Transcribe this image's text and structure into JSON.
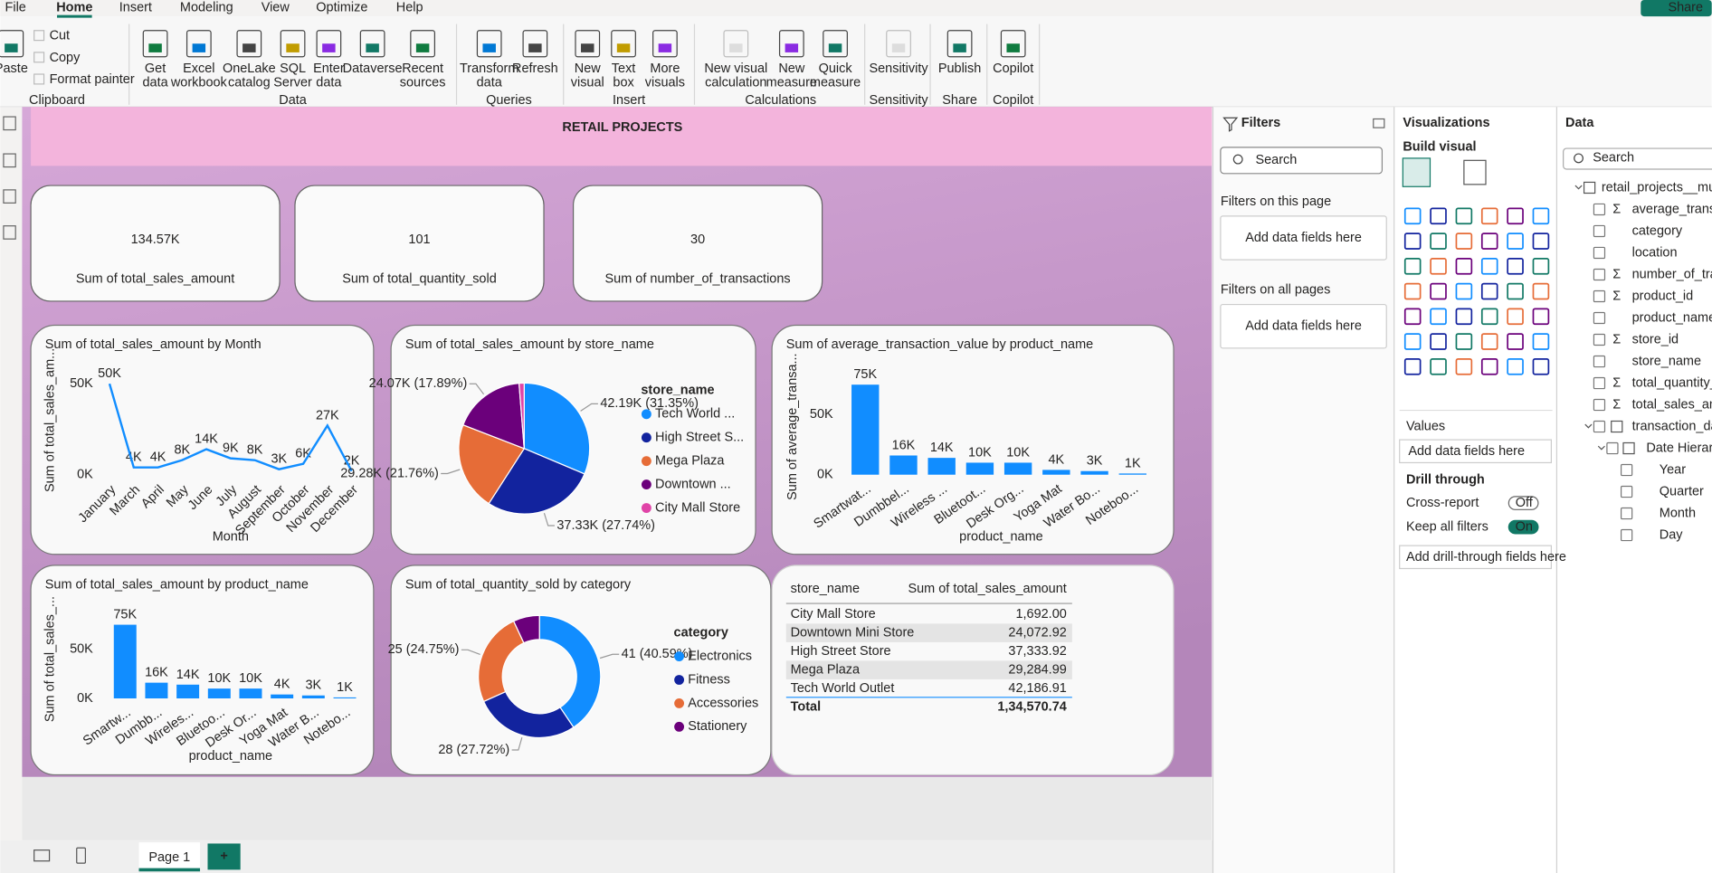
{
  "menu": {
    "tabs": [
      "File",
      "Home",
      "Insert",
      "Modeling",
      "View",
      "Optimize",
      "Help"
    ],
    "active": 1,
    "share": "Share"
  },
  "ribbon": {
    "groups": [
      {
        "label": "Clipboard",
        "buttons": [
          [
            "Paste"
          ]
        ],
        "small": [
          "Cut",
          "Copy",
          "Format painter"
        ]
      },
      {
        "label": "Data",
        "buttons": [
          [
            "Get",
            "data"
          ],
          [
            "Excel",
            "workbook"
          ],
          [
            "OneLake",
            "catalog"
          ],
          [
            "SQL",
            "Server"
          ],
          [
            "Enter",
            "data"
          ],
          [
            "Dataverse"
          ],
          [
            "Recent",
            "sources"
          ]
        ]
      },
      {
        "label": "Queries",
        "buttons": [
          [
            "Transform",
            "data"
          ],
          [
            "Refresh"
          ]
        ]
      },
      {
        "label": "Insert",
        "buttons": [
          [
            "New",
            "visual"
          ],
          [
            "Text",
            "box"
          ],
          [
            "More",
            "visuals"
          ]
        ]
      },
      {
        "label": "Calculations",
        "buttons": [
          [
            "New visual",
            "calculation"
          ],
          [
            "New",
            "measure"
          ],
          [
            "Quick",
            "measure"
          ]
        ]
      },
      {
        "label": "Sensitivity",
        "buttons": [
          [
            "Sensitivity"
          ]
        ]
      },
      {
        "label": "Share",
        "buttons": [
          [
            "Publish"
          ]
        ]
      },
      {
        "label": "Copilot",
        "buttons": [
          [
            "Copilot"
          ]
        ]
      }
    ]
  },
  "report": {
    "title": "RETAIL PROJECTS"
  },
  "cards": [
    {
      "value": "134.57K",
      "label": "Sum of total_sales_amount"
    },
    {
      "value": "101",
      "label": "Sum of total_quantity_sold"
    },
    {
      "value": "30",
      "label": "Sum of number_of_transactions"
    }
  ],
  "chart_data": [
    {
      "type": "line",
      "title": "Sum of total_sales_amount by Month",
      "x_label": "Month",
      "y_label": "Sum of total_sales_am...",
      "categories": [
        "January",
        "March",
        "April",
        "May",
        "June",
        "July",
        "August",
        "September",
        "October",
        "November",
        "December"
      ],
      "values": [
        50000,
        4000,
        4000,
        8000,
        14000,
        9000,
        8000,
        3000,
        6000,
        27000,
        2000
      ],
      "value_labels": [
        "50K",
        "4K",
        "4K",
        "8K",
        "14K",
        "9K",
        "8K",
        "3K",
        "6K",
        "27K",
        "2K"
      ],
      "color": "#118dff",
      "ylim": [
        0,
        60000
      ],
      "yticks": [
        {
          "value": 0,
          "label": "0K"
        },
        {
          "value": 50000,
          "label": "50K"
        }
      ],
      "grid": false
    },
    {
      "type": "pie",
      "title": "Sum of total_sales_amount by store_name",
      "legend_title": "store_name",
      "categories": [
        "Tech World ...",
        "High Street S...",
        "Mega Plaza",
        "Downtown ...",
        "City Mall Store"
      ],
      "values": [
        42186.91,
        37333.92,
        29284.99,
        24072.92,
        1692.0
      ],
      "value_labels": [
        "42.19K (31.35%)",
        "37.33K (27.74%)",
        "29.28K (21.76%)",
        "24.07K (17.89%)",
        null
      ],
      "colors": [
        "#118dff",
        "#12239e",
        "#e66c37",
        "#6b007b",
        "#e044a7"
      ]
    },
    {
      "type": "bar",
      "title": "Sum of average_transaction_value by product_name",
      "x_label": "product_name",
      "y_label": "Sum of average_transa...",
      "categories": [
        "Smartwat...",
        "Dumbbel...",
        "Wireless ...",
        "Bluetoot...",
        "Desk Org...",
        "Yoga Mat",
        "Water Bo...",
        "Noteboo..."
      ],
      "values": [
        75000,
        16000,
        14000,
        10000,
        10000,
        4000,
        3000,
        1000
      ],
      "value_labels": [
        "75K",
        "16K",
        "14K",
        "10K",
        "10K",
        "4K",
        "3K",
        "1K"
      ],
      "color": "#118dff",
      "ylim": [
        0,
        80000
      ],
      "yticks": [
        {
          "value": 0,
          "label": "0K"
        },
        {
          "value": 50000,
          "label": "50K"
        }
      ],
      "grid": false
    },
    {
      "type": "bar",
      "title": "Sum of total_sales_amount by product_name",
      "x_label": "product_name",
      "y_label": "Sum of total_sales_...",
      "categories": [
        "Smartw...",
        "Dumbb...",
        "Wireles...",
        "Bluetoo...",
        "Desk Or...",
        "Yoga Mat",
        "Water B...",
        "Notebo..."
      ],
      "values": [
        75000,
        16000,
        14000,
        10000,
        10000,
        4000,
        3000,
        1000
      ],
      "value_labels": [
        "75K",
        "16K",
        "14K",
        "10K",
        "10K",
        "4K",
        "3K",
        "1K"
      ],
      "color": "#118dff",
      "ylim": [
        0,
        80000
      ],
      "yticks": [
        {
          "value": 0,
          "label": "0K"
        },
        {
          "value": 50000,
          "label": "50K"
        }
      ],
      "grid": false
    },
    {
      "type": "donut",
      "title": "Sum of total_quantity_sold by category",
      "legend_title": "category",
      "categories": [
        "Electronics",
        "Fitness",
        "Accessories",
        "Stationery"
      ],
      "values": [
        41,
        28,
        25,
        7
      ],
      "value_labels": [
        "41 (40.59%)",
        "28 (27.72%)",
        "25 (24.75%)",
        null
      ],
      "colors": [
        "#118dff",
        "#12239e",
        "#e66c37",
        "#6b007b"
      ]
    }
  ],
  "table": {
    "columns": [
      "store_name",
      "Sum of total_sales_amount"
    ],
    "rows": [
      [
        "City Mall Store",
        "1,692.00"
      ],
      [
        "Downtown Mini Store",
        "24,072.92"
      ],
      [
        "High Street Store",
        "37,333.92"
      ],
      [
        "Mega Plaza",
        "29,284.99"
      ],
      [
        "Tech World Outlet",
        "42,186.91"
      ]
    ],
    "total": [
      "Total",
      "1,34,570.74"
    ]
  },
  "filters": {
    "title": "Filters",
    "search": "Search",
    "sections": [
      {
        "label": "Filters on this page",
        "placeholder": "Add data fields here"
      },
      {
        "label": "Filters on all pages",
        "placeholder": "Add data fields here"
      }
    ]
  },
  "visualizations": {
    "title": "Visualizations",
    "subtitle": "Build visual",
    "values_label": "Values",
    "values_placeholder": "Add data fields here",
    "drill_title": "Drill through",
    "toggles": [
      {
        "label": "Cross-report",
        "state": "Off",
        "on": false
      },
      {
        "label": "Keep all filters",
        "state": "On",
        "on": true
      }
    ],
    "drill_placeholder": "Add drill-through fields here"
  },
  "data_pane": {
    "title": "Data",
    "search": "Search",
    "items": [
      {
        "text": "retail_projects__multi...",
        "level": 0,
        "kind": "table"
      },
      {
        "text": "average_transa...",
        "level": 1,
        "kind": "field",
        "icon": "Σ"
      },
      {
        "text": "category",
        "level": 1,
        "kind": "field"
      },
      {
        "text": "location",
        "level": 1,
        "kind": "field"
      },
      {
        "text": "number_of_tran...",
        "level": 1,
        "kind": "field",
        "icon": "Σ"
      },
      {
        "text": "product_id",
        "level": 1,
        "kind": "field",
        "icon": "Σ"
      },
      {
        "text": "product_name",
        "level": 1,
        "kind": "field"
      },
      {
        "text": "store_id",
        "level": 1,
        "kind": "field",
        "icon": "Σ"
      },
      {
        "text": "store_name",
        "level": 1,
        "kind": "field"
      },
      {
        "text": "total_quantity_s...",
        "level": 1,
        "kind": "field",
        "icon": "Σ"
      },
      {
        "text": "total_sales_amo...",
        "level": 1,
        "kind": "field",
        "icon": "Σ"
      },
      {
        "text": "transaction_date",
        "level": 1,
        "kind": "table"
      },
      {
        "text": "Date Hierarc...",
        "level": 2,
        "kind": "table"
      },
      {
        "text": "Year",
        "level": 3,
        "kind": "field"
      },
      {
        "text": "Quarter",
        "level": 3,
        "kind": "field"
      },
      {
        "text": "Month",
        "level": 3,
        "kind": "field"
      },
      {
        "text": "Day",
        "level": 3,
        "kind": "field"
      }
    ]
  },
  "footer": {
    "page": "Page 1",
    "add": "+"
  }
}
